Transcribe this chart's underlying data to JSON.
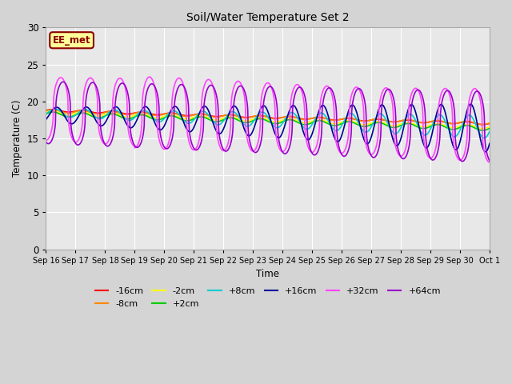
{
  "title": "Soil/Water Temperature Set 2",
  "xlabel": "Time",
  "ylabel": "Temperature (C)",
  "ylim": [
    0,
    30
  ],
  "yticks": [
    0,
    5,
    10,
    15,
    20,
    25,
    30
  ],
  "plot_bg_color": "#e8e8e8",
  "fig_bg_color": "#d4d4d4",
  "annotation_text": "EE_met",
  "annotation_color": "#8B0000",
  "annotation_bg": "#ffff99",
  "series": [
    {
      "label": "-16cm",
      "color": "#ff0000"
    },
    {
      "label": "-8cm",
      "color": "#ff8800"
    },
    {
      "label": "-2cm",
      "color": "#ffff00"
    },
    {
      "label": "+2cm",
      "color": "#00cc00"
    },
    {
      "label": "+8cm",
      "color": "#00cccc"
    },
    {
      "label": "+16cm",
      "color": "#000099"
    },
    {
      "label": "+32cm",
      "color": "#ff44ff"
    },
    {
      "label": "+64cm",
      "color": "#9900cc"
    }
  ],
  "tick_labels": [
    "Sep 16",
    "Sep 17",
    "Sep 18",
    "Sep 19",
    "Sep 20",
    "Sep 21",
    "Sep 22",
    "Sep 23",
    "Sep 24",
    "Sep 25",
    "Sep 26",
    "Sep 27",
    "Sep 28",
    "Sep 29",
    "Sep 30",
    "Oct 1"
  ]
}
